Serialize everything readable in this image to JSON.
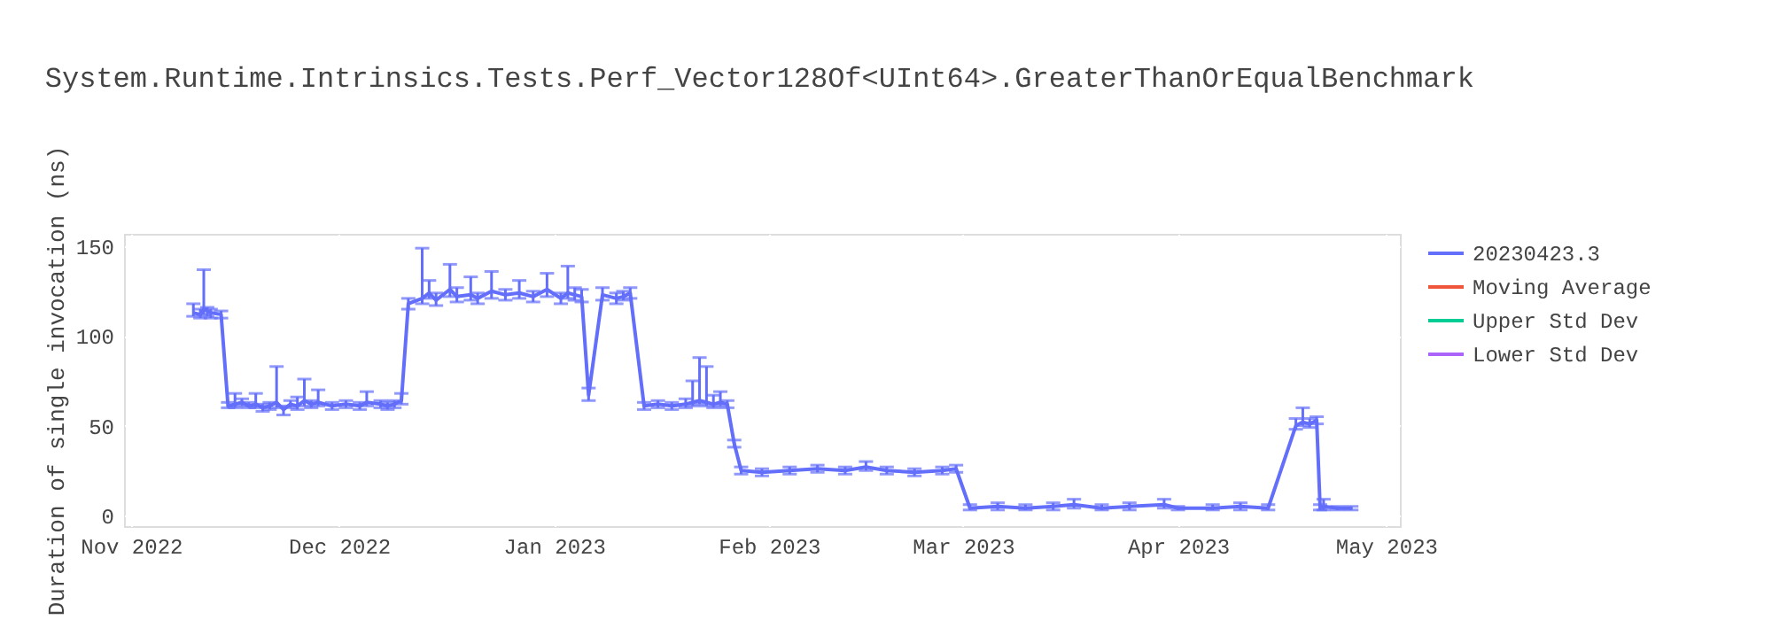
{
  "chart_data": {
    "type": "line",
    "title": "System.Runtime.Intrinsics.Tests.Perf_Vector128Of<UInt64>.GreaterThanOrEqualBenchmark",
    "ylabel": "Duration of single invocation (ns)",
    "xlim": [
      "2022-10-31",
      "2023-05-03"
    ],
    "xticks": [
      {
        "value": "2022-11-01",
        "label": "Nov 2022"
      },
      {
        "value": "2022-12-01",
        "label": "Dec 2022"
      },
      {
        "value": "2023-01-01",
        "label": "Jan 2023"
      },
      {
        "value": "2023-02-01",
        "label": "Feb 2023"
      },
      {
        "value": "2023-03-01",
        "label": "Mar 2023"
      },
      {
        "value": "2023-04-01",
        "label": "Apr 2023"
      },
      {
        "value": "2023-05-01",
        "label": "May 2023"
      }
    ],
    "ylim": [
      -6,
      157
    ],
    "yticks": [
      0,
      50,
      100,
      150
    ],
    "grid": true,
    "legend": "top right",
    "marker": "none",
    "line_style": "solid",
    "series": [
      {
        "name": "20230423.3",
        "color": "#636efa",
        "x": [
          "2022-11-10",
          "2022-11-11",
          "2022-11-11T12:00",
          "2022-11-12",
          "2022-11-12T12:00",
          "2022-11-14",
          "2022-11-15",
          "2022-11-16",
          "2022-11-17",
          "2022-11-18",
          "2022-11-19",
          "2022-11-20",
          "2022-11-21",
          "2022-11-22",
          "2022-11-23",
          "2022-11-24",
          "2022-11-25",
          "2022-11-26",
          "2022-11-27",
          "2022-11-28",
          "2022-11-30",
          "2022-12-02",
          "2022-12-04",
          "2022-12-05",
          "2022-12-07",
          "2022-12-08",
          "2022-12-09",
          "2022-12-10",
          "2022-12-11",
          "2022-12-13",
          "2022-12-14",
          "2022-12-15",
          "2022-12-17",
          "2022-12-18",
          "2022-12-20",
          "2022-12-21",
          "2022-12-23",
          "2022-12-25",
          "2022-12-27",
          "2022-12-29",
          "2022-12-31",
          "2023-01-02",
          "2023-01-03",
          "2023-01-04",
          "2023-01-05",
          "2023-01-06",
          "2023-01-08",
          "2023-01-10",
          "2023-01-11",
          "2023-01-12",
          "2023-01-14",
          "2023-01-16",
          "2023-01-18",
          "2023-01-20",
          "2023-01-21",
          "2023-01-22",
          "2023-01-23",
          "2023-01-24",
          "2023-01-25",
          "2023-01-26",
          "2023-01-27",
          "2023-01-28",
          "2023-01-31",
          "2023-02-04",
          "2023-02-08",
          "2023-02-12",
          "2023-02-15",
          "2023-02-18",
          "2023-02-22",
          "2023-02-26",
          "2023-02-28",
          "2023-03-02",
          "2023-03-06",
          "2023-03-10",
          "2023-03-14",
          "2023-03-17",
          "2023-03-21",
          "2023-03-25",
          "2023-03-30",
          "2023-04-01",
          "2023-04-06",
          "2023-04-10",
          "2023-04-14",
          "2023-04-18",
          "2023-04-19",
          "2023-04-20",
          "2023-04-21",
          "2023-04-21T12:00",
          "2023-04-22",
          "2023-04-24",
          "2023-04-26"
        ],
        "values": [
          113,
          112,
          115,
          114,
          113,
          112,
          61,
          62,
          63,
          61,
          62,
          60,
          61,
          63,
          59,
          62,
          61,
          64,
          62,
          63,
          61,
          62,
          61,
          63,
          62,
          61,
          62,
          64,
          118,
          121,
          124,
          120,
          126,
          122,
          123,
          121,
          125,
          123,
          124,
          122,
          126,
          121,
          124,
          123,
          122,
          67,
          123,
          121,
          122,
          124,
          61,
          62,
          61,
          62,
          63,
          64,
          63,
          62,
          63,
          62,
          40,
          25,
          24,
          25,
          26,
          25,
          27,
          25,
          24,
          25,
          26,
          4,
          5,
          4,
          5,
          6,
          4,
          5,
          6,
          4,
          4,
          5,
          4,
          50,
          52,
          51,
          53,
          4,
          5,
          4,
          4
        ],
        "errors": [
          [
            111,
            118
          ],
          [
            110,
            115
          ],
          [
            112,
            137
          ],
          [
            111,
            116
          ],
          [
            110,
            115
          ],
          [
            110,
            114
          ],
          [
            60,
            63
          ],
          [
            60,
            68
          ],
          [
            61,
            65
          ],
          [
            60,
            63
          ],
          [
            60,
            68
          ],
          [
            58,
            62
          ],
          [
            59,
            63
          ],
          [
            60,
            83
          ],
          [
            56,
            61
          ],
          [
            60,
            64
          ],
          [
            59,
            66
          ],
          [
            61,
            76
          ],
          [
            60,
            64
          ],
          [
            61,
            70
          ],
          [
            59,
            63
          ],
          [
            60,
            64
          ],
          [
            59,
            63
          ],
          [
            61,
            69
          ],
          [
            60,
            64
          ],
          [
            59,
            63
          ],
          [
            60,
            64
          ],
          [
            62,
            68
          ],
          [
            115,
            121
          ],
          [
            118,
            149
          ],
          [
            121,
            131
          ],
          [
            117,
            124
          ],
          [
            122,
            140
          ],
          [
            119,
            127
          ],
          [
            120,
            133
          ],
          [
            118,
            124
          ],
          [
            121,
            136
          ],
          [
            120,
            126
          ],
          [
            121,
            131
          ],
          [
            119,
            125
          ],
          [
            122,
            135
          ],
          [
            118,
            124
          ],
          [
            121,
            139
          ],
          [
            120,
            127
          ],
          [
            119,
            126
          ],
          [
            64,
            71
          ],
          [
            120,
            127
          ],
          [
            118,
            124
          ],
          [
            120,
            125
          ],
          [
            121,
            127
          ],
          [
            59,
            63
          ],
          [
            60,
            64
          ],
          [
            59,
            63
          ],
          [
            60,
            65
          ],
          [
            61,
            75
          ],
          [
            62,
            88
          ],
          [
            61,
            83
          ],
          [
            60,
            67
          ],
          [
            61,
            69
          ],
          [
            60,
            64
          ],
          [
            38,
            42
          ],
          [
            23,
            27
          ],
          [
            22,
            26
          ],
          [
            23,
            27
          ],
          [
            24,
            28
          ],
          [
            23,
            27
          ],
          [
            25,
            30
          ],
          [
            23,
            27
          ],
          [
            22,
            26
          ],
          [
            23,
            27
          ],
          [
            24,
            28
          ],
          [
            3,
            6
          ],
          [
            3,
            7
          ],
          [
            3,
            6
          ],
          [
            3,
            7
          ],
          [
            4,
            9
          ],
          [
            3,
            6
          ],
          [
            3,
            7
          ],
          [
            4,
            9
          ],
          [
            3,
            5
          ],
          [
            3,
            6
          ],
          [
            3,
            7
          ],
          [
            3,
            6
          ],
          [
            48,
            54
          ],
          [
            50,
            60
          ],
          [
            49,
            54
          ],
          [
            51,
            55
          ],
          [
            3,
            6
          ],
          [
            3,
            9
          ],
          [
            3,
            5
          ],
          [
            3,
            5
          ]
        ]
      },
      {
        "name": "Moving Average",
        "color": "#ef553b"
      },
      {
        "name": "Upper Std Dev",
        "color": "#00cc96"
      },
      {
        "name": "Lower Std Dev",
        "color": "#ab63fa"
      }
    ]
  }
}
